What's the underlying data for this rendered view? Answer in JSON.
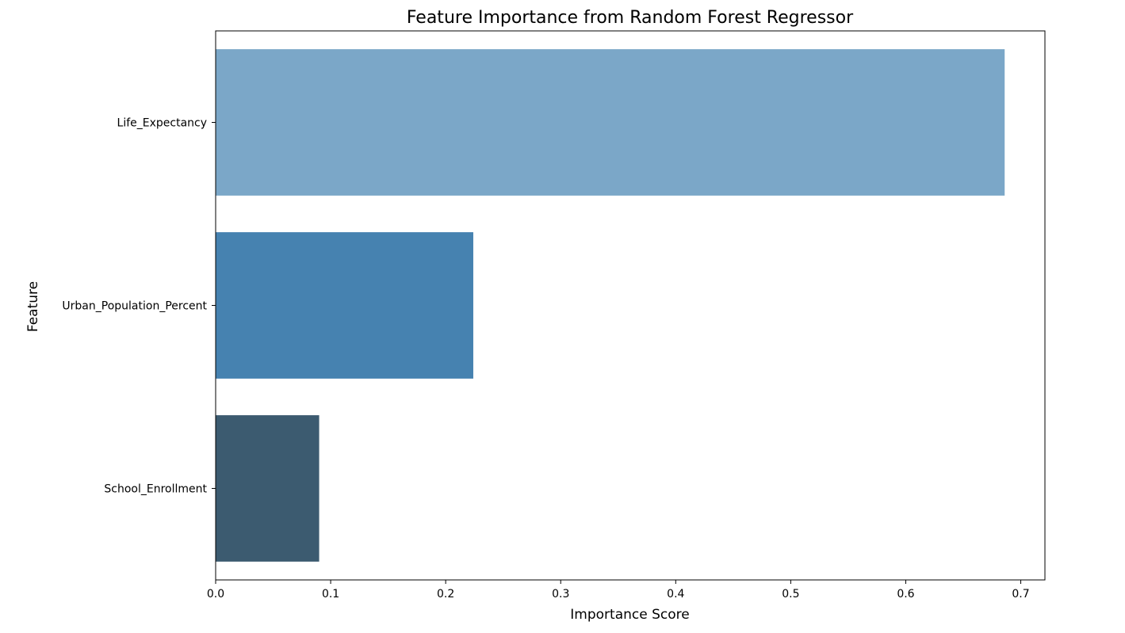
{
  "chart_data": {
    "type": "bar",
    "orientation": "horizontal",
    "title": "Feature Importance from Random Forest Regressor",
    "xlabel": "Importance Score",
    "ylabel": "Feature",
    "categories": [
      "Life_Expectancy",
      "Urban_Population_Percent",
      "School_Enrollment"
    ],
    "values": [
      0.686,
      0.224,
      0.09
    ],
    "colors": [
      "#7BA7C8",
      "#4682B0",
      "#3C5B70"
    ],
    "xlim": [
      0,
      0.721
    ],
    "xticks": [
      0.0,
      0.1,
      0.2,
      0.3,
      0.4,
      0.5,
      0.6,
      0.7
    ],
    "xtick_labels": [
      "0.0",
      "0.1",
      "0.2",
      "0.3",
      "0.4",
      "0.5",
      "0.6",
      "0.7"
    ],
    "grid": false,
    "legend": "none"
  }
}
